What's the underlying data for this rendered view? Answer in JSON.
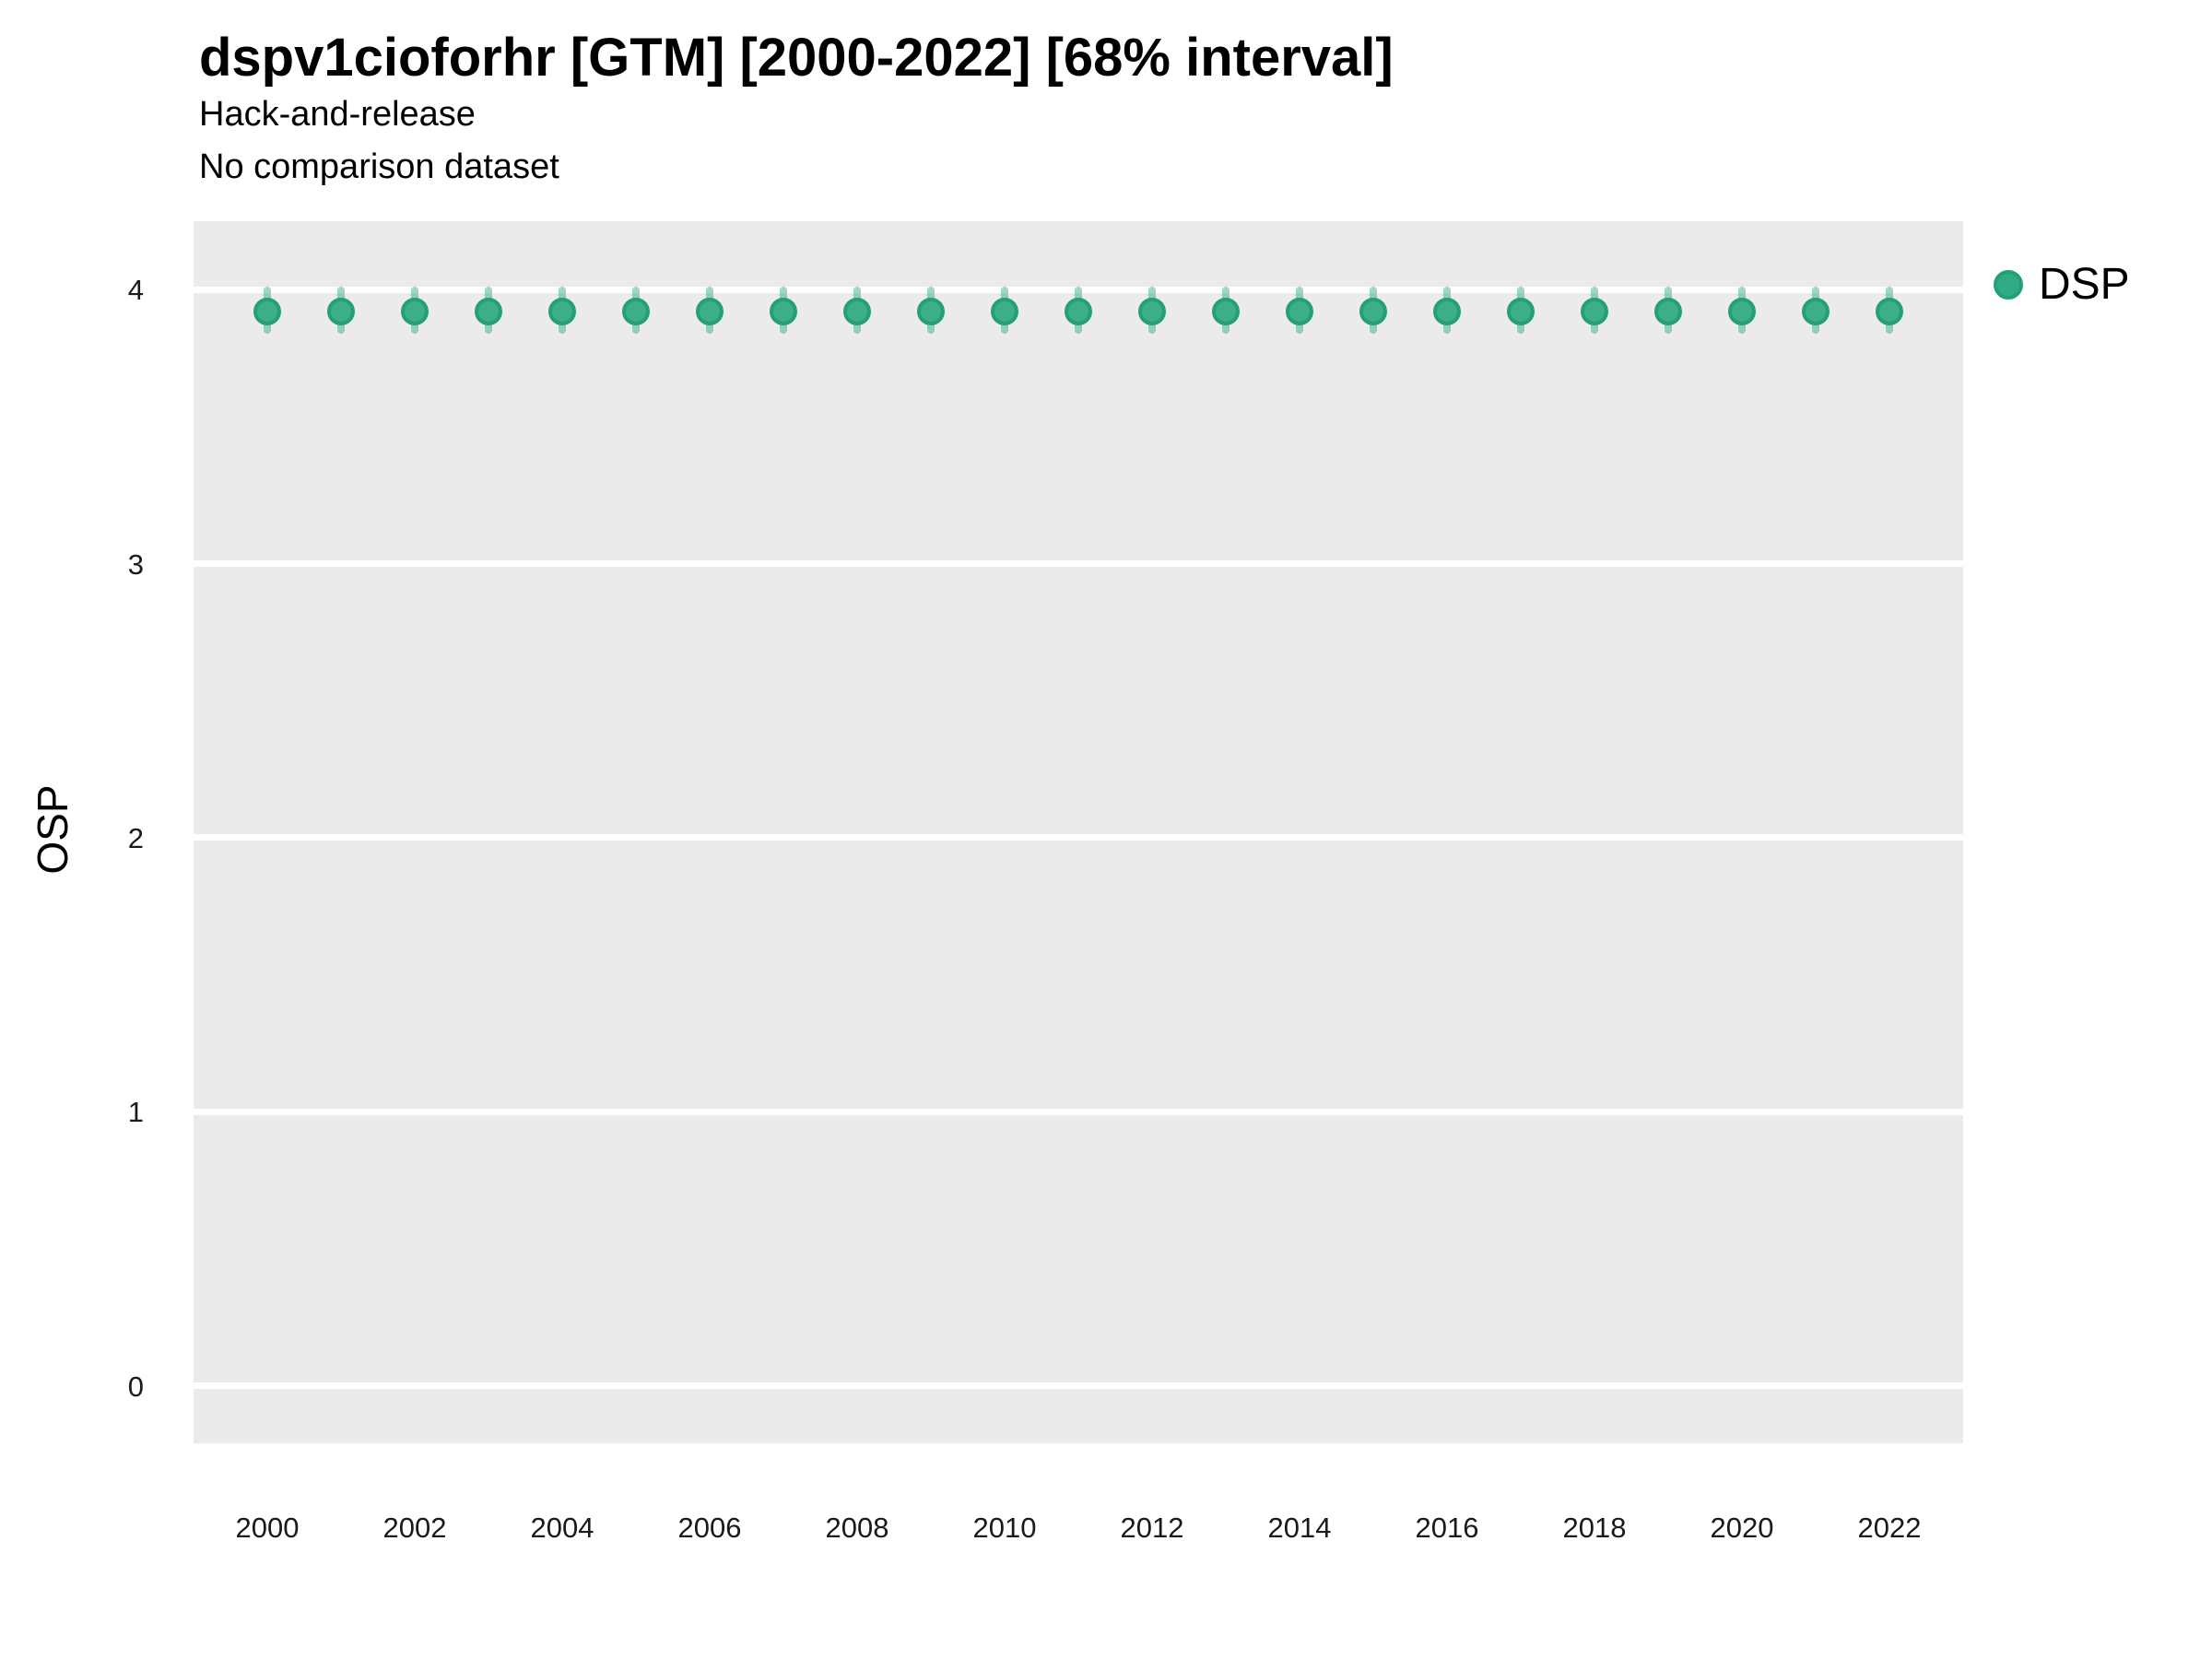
{
  "header": {
    "title": "dspv1cioforhr [GTM] [2000-2022] [68% interval]",
    "subtitle_line1": "Hack-and-release",
    "subtitle_line2": "No comparison dataset"
  },
  "y_axis": {
    "label": "OSP"
  },
  "legend": {
    "items": [
      {
        "label": "DSP",
        "ring_color": "#23A077",
        "fill_color": "#31AB85"
      }
    ]
  },
  "colors": {
    "panel_bg": "#EBEBEB",
    "gridline": "#FFFFFF",
    "point_ring": "#23A077",
    "point_fill": "#3CAE8A",
    "interval_bar": "rgba(42,164,122,0.45)",
    "tick_text": "#1A1A1A"
  },
  "chart_data": {
    "type": "scatter",
    "title": "dspv1cioforhr [GTM] [2000-2022] [68% interval]",
    "subtitle": [
      "Hack-and-release",
      "No comparison dataset"
    ],
    "xlabel": "",
    "ylabel": "OSP",
    "xlim": [
      1999,
      2023
    ],
    "ylim": [
      -0.21,
      4.25
    ],
    "x_ticks": [
      2000,
      2002,
      2004,
      2006,
      2008,
      2010,
      2012,
      2014,
      2016,
      2018,
      2020,
      2022
    ],
    "y_ticks": [
      0,
      1,
      2,
      3,
      4
    ],
    "grid": "horizontal-major-only",
    "legend_position": "right-top",
    "interval_label": "68% interval",
    "series": [
      {
        "name": "DSP",
        "x": [
          2000,
          2001,
          2002,
          2003,
          2004,
          2005,
          2006,
          2007,
          2008,
          2009,
          2010,
          2011,
          2012,
          2013,
          2014,
          2015,
          2016,
          2017,
          2018,
          2019,
          2020,
          2021,
          2022
        ],
        "y": [
          3.92,
          3.92,
          3.92,
          3.92,
          3.92,
          3.92,
          3.92,
          3.92,
          3.92,
          3.92,
          3.92,
          3.92,
          3.92,
          3.92,
          3.92,
          3.92,
          3.92,
          3.92,
          3.92,
          3.92,
          3.92,
          3.92,
          3.92
        ],
        "y_lo": [
          3.84,
          3.84,
          3.84,
          3.84,
          3.84,
          3.84,
          3.84,
          3.84,
          3.84,
          3.84,
          3.84,
          3.84,
          3.84,
          3.84,
          3.84,
          3.84,
          3.84,
          3.84,
          3.84,
          3.84,
          3.84,
          3.84,
          3.84
        ],
        "y_hi": [
          4.01,
          4.01,
          4.01,
          4.01,
          4.01,
          4.01,
          4.01,
          4.01,
          4.01,
          4.01,
          4.01,
          4.01,
          4.01,
          4.01,
          4.01,
          4.01,
          4.01,
          4.01,
          4.01,
          4.01,
          4.01,
          4.01,
          4.01
        ]
      }
    ]
  }
}
